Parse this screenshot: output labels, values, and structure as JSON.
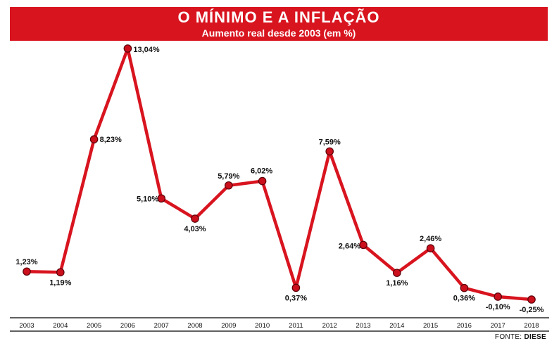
{
  "header": {
    "title": "O MÍNIMO E A INFLAÇÃO",
    "subtitle": "Aumento real desde 2003 (em %)"
  },
  "footer": {
    "source_prefix": "FONTE:",
    "source_name": "DIESE"
  },
  "colors": {
    "banner": "#d8141f",
    "line": "#d8141f",
    "marker": "#cc0f1c",
    "marker_stroke": "#5a0008"
  },
  "chart_data": {
    "type": "line",
    "title": "O MÍNIMO E A INFLAÇÃO",
    "subtitle": "Aumento real desde 2003 (em %)",
    "xlabel": "",
    "ylabel": "",
    "grid": false,
    "legend": "none",
    "ylim": [
      -0.5,
      13.5
    ],
    "categories": [
      "2003",
      "2004",
      "2005",
      "2006",
      "2007",
      "2008",
      "2009",
      "2010",
      "2011",
      "2012",
      "2013",
      "2014",
      "2015",
      "2016",
      "2017",
      "2018"
    ],
    "series": [
      {
        "values": [
          1.23,
          1.19,
          8.23,
          13.04,
          5.1,
          4.03,
          5.79,
          6.02,
          0.37,
          7.59,
          2.64,
          1.16,
          2.46,
          0.36,
          -0.1,
          -0.25
        ],
        "labels": [
          "1,23%",
          "1,19%",
          "8,23%",
          "13,04%",
          "5,10%",
          "4,03%",
          "5,79%",
          "6,02%",
          "0,37%",
          "7,59%",
          "2,64%",
          "1,16%",
          "2,46%",
          "0,36%",
          "-0,10%",
          "-0,25%"
        ]
      }
    ]
  }
}
